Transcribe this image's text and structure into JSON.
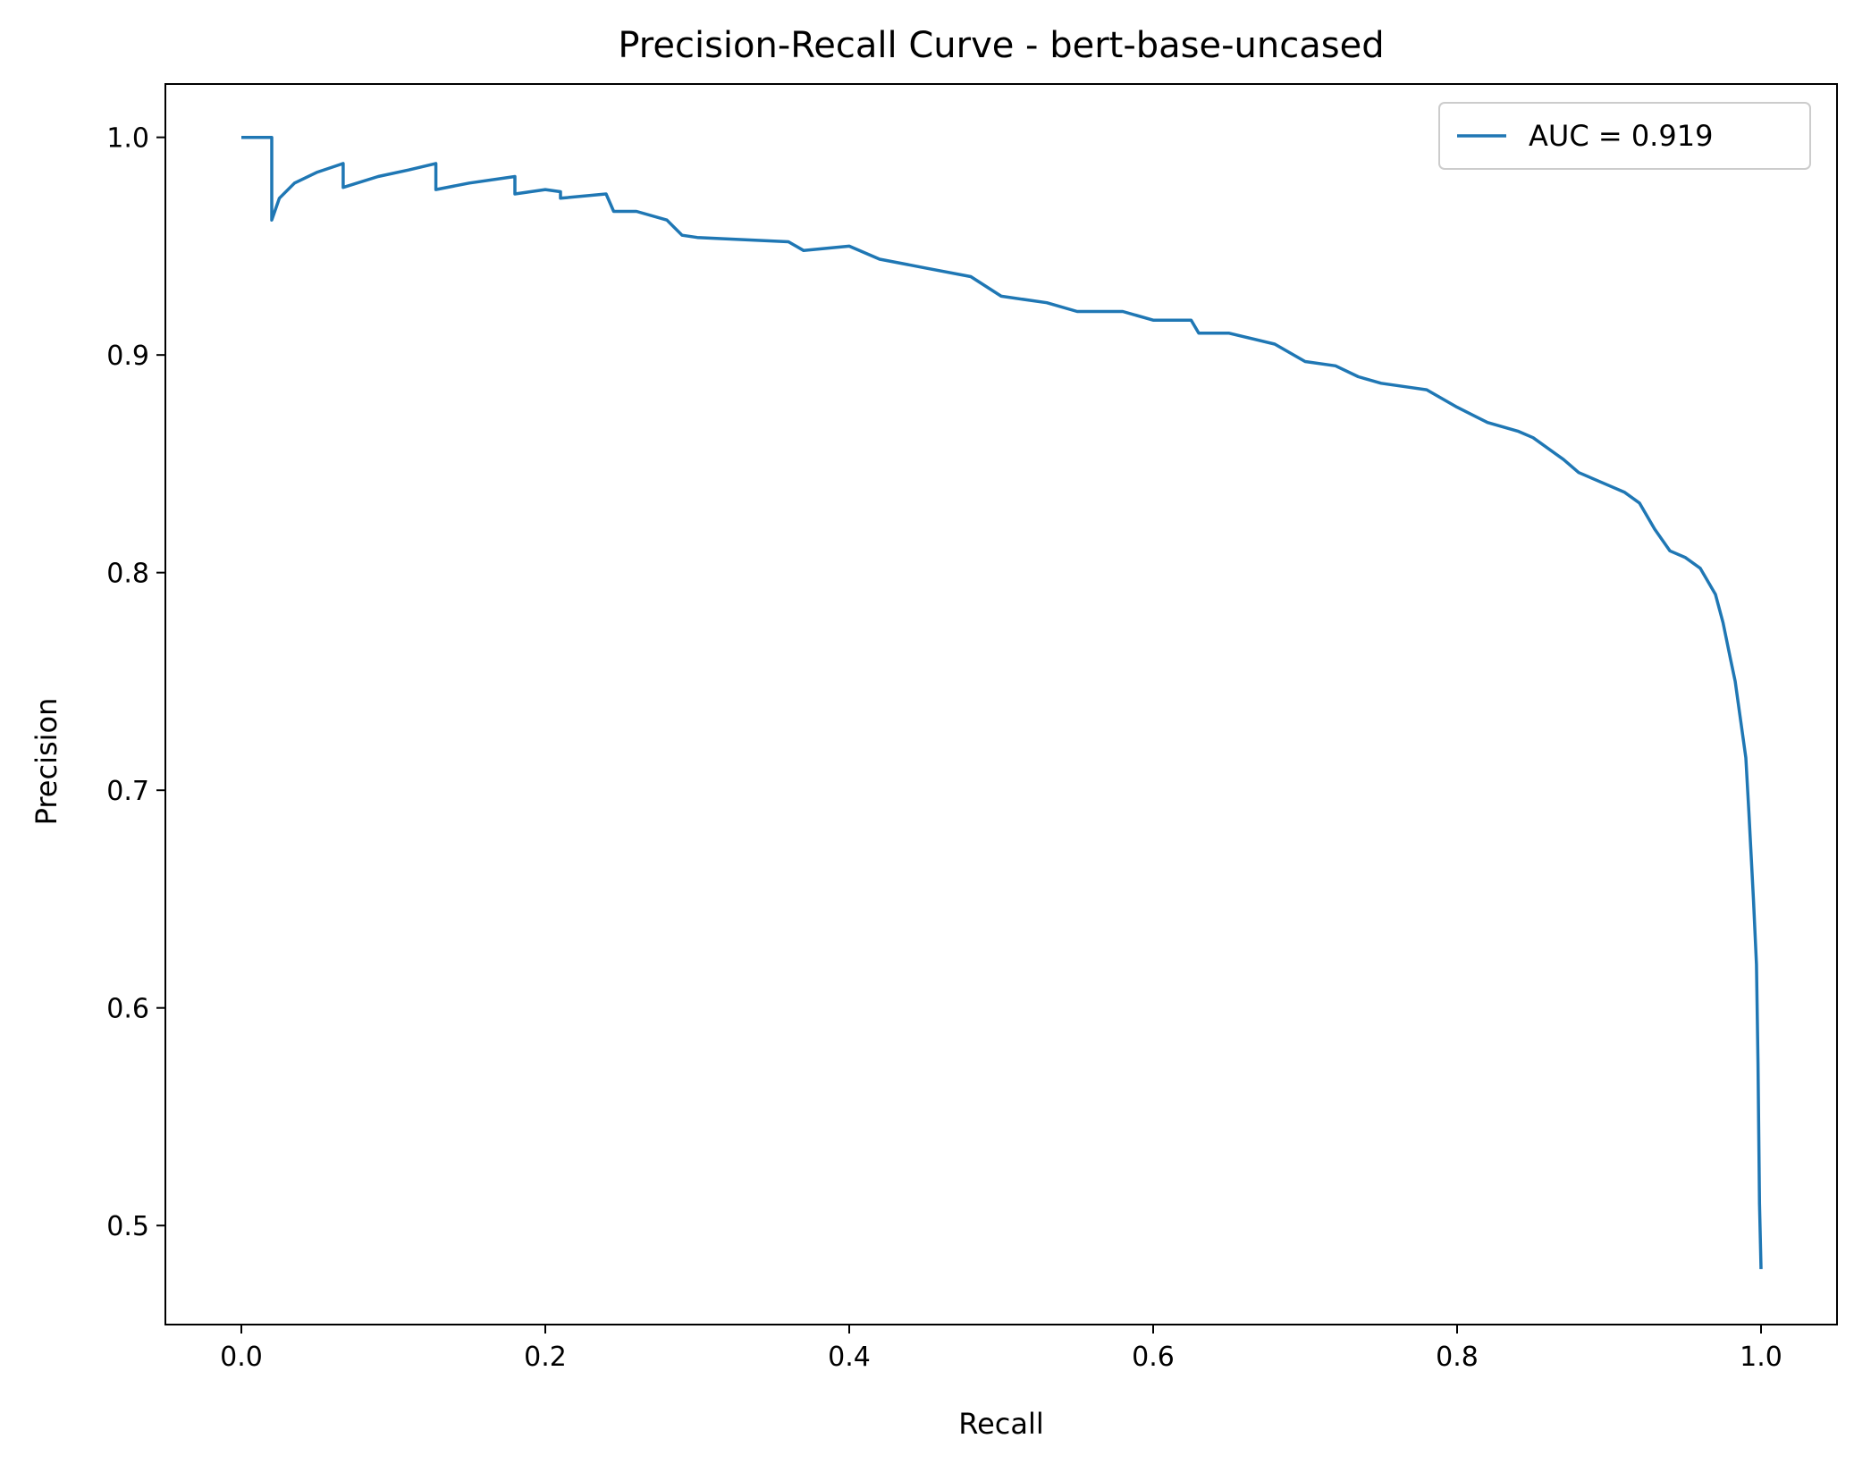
{
  "chart_data": {
    "type": "line",
    "title": "Precision-Recall Curve - bert-base-uncased",
    "xlabel": "Recall",
    "ylabel": "Precision",
    "xlim": [
      -0.05,
      1.05
    ],
    "ylim": [
      0.4545,
      1.0245
    ],
    "xticks": [
      0.0,
      0.2,
      0.4,
      0.6,
      0.8,
      1.0
    ],
    "xtick_labels": [
      "0.0",
      "0.2",
      "0.4",
      "0.6",
      "0.8",
      "1.0"
    ],
    "yticks": [
      0.5,
      0.6,
      0.7,
      0.8,
      0.9,
      1.0
    ],
    "ytick_labels": [
      "0.5",
      "0.6",
      "0.7",
      "0.8",
      "0.9",
      "1.0"
    ],
    "grid": false,
    "legend_position": "top-right",
    "series": [
      {
        "name": "AUC = 0.919",
        "color": "#1f77b4",
        "x": [
          0.0,
          0.02,
          0.02,
          0.025,
          0.035,
          0.05,
          0.067,
          0.067,
          0.09,
          0.11,
          0.128,
          0.128,
          0.15,
          0.18,
          0.18,
          0.2,
          0.21,
          0.21,
          0.24,
          0.245,
          0.26,
          0.28,
          0.29,
          0.3,
          0.33,
          0.36,
          0.37,
          0.4,
          0.42,
          0.45,
          0.48,
          0.5,
          0.53,
          0.55,
          0.58,
          0.6,
          0.625,
          0.63,
          0.65,
          0.68,
          0.7,
          0.72,
          0.735,
          0.75,
          0.77,
          0.78,
          0.8,
          0.82,
          0.84,
          0.85,
          0.87,
          0.88,
          0.9,
          0.91,
          0.92,
          0.93,
          0.94,
          0.95,
          0.96,
          0.97,
          0.975,
          0.98,
          0.983,
          0.986,
          0.99,
          0.992,
          0.995,
          0.997,
          0.998,
          0.999,
          1.0
        ],
        "y": [
          1.0,
          1.0,
          0.962,
          0.972,
          0.979,
          0.984,
          0.988,
          0.977,
          0.982,
          0.985,
          0.988,
          0.976,
          0.979,
          0.982,
          0.974,
          0.976,
          0.975,
          0.972,
          0.974,
          0.966,
          0.966,
          0.962,
          0.955,
          0.954,
          0.953,
          0.952,
          0.948,
          0.95,
          0.944,
          0.94,
          0.936,
          0.927,
          0.924,
          0.92,
          0.92,
          0.916,
          0.916,
          0.91,
          0.91,
          0.905,
          0.897,
          0.895,
          0.89,
          0.887,
          0.885,
          0.884,
          0.876,
          0.869,
          0.865,
          0.862,
          0.852,
          0.846,
          0.84,
          0.837,
          0.832,
          0.82,
          0.81,
          0.807,
          0.802,
          0.79,
          0.777,
          0.76,
          0.75,
          0.735,
          0.715,
          0.69,
          0.65,
          0.62,
          0.575,
          0.51,
          0.48
        ]
      }
    ]
  }
}
